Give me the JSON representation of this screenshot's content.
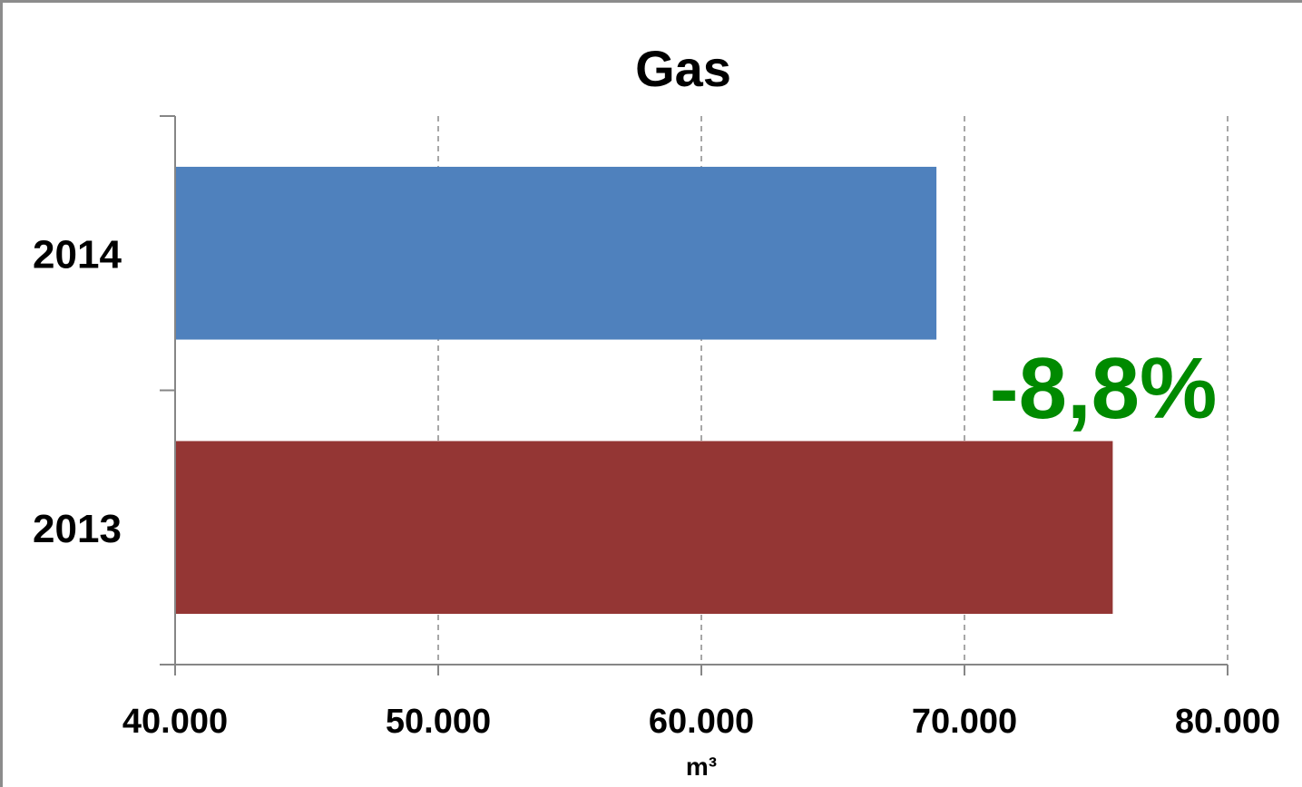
{
  "chart_data": {
    "type": "bar",
    "orientation": "horizontal",
    "title": "Gas",
    "xlabel": "m³",
    "ylabel": "",
    "categories": [
      "2014",
      "2013"
    ],
    "values": [
      68900,
      75600
    ],
    "bar_colors": [
      "#4f81bd",
      "#943634"
    ],
    "xlim": [
      40000,
      80000
    ],
    "x_ticks": [
      40000,
      50000,
      60000,
      70000,
      80000
    ],
    "x_tick_labels": [
      "40.000",
      "50.000",
      "60.000",
      "70.000",
      "80.000"
    ],
    "grid": "vertical-dashed",
    "legend": "none",
    "annotations": [
      {
        "text": "-8,8%",
        "color": "#008a00"
      }
    ]
  }
}
